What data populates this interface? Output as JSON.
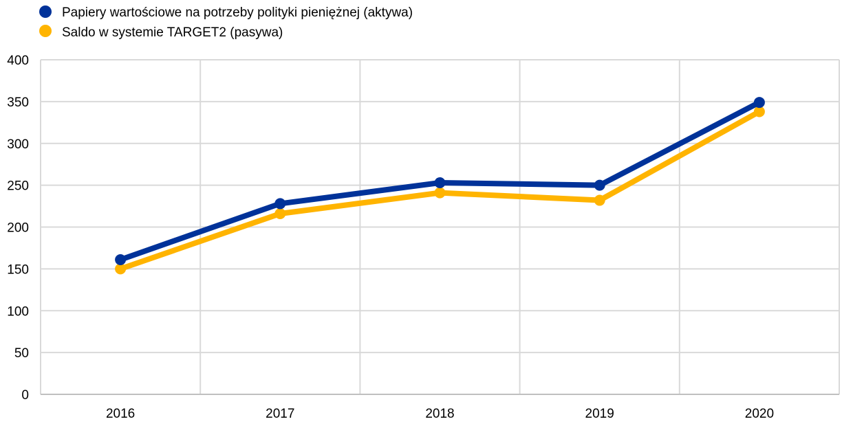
{
  "chart_data": {
    "type": "line",
    "categories": [
      "2016",
      "2017",
      "2018",
      "2019",
      "2020"
    ],
    "series": [
      {
        "name": "Papiery wartościowe na potrzeby polityki pieniężnej (aktywa)",
        "color": "#003299",
        "values": [
          161,
          228,
          253,
          250,
          349
        ]
      },
      {
        "name": "Saldo w systemie TARGET2 (pasywa)",
        "color": "#FFB400",
        "values": [
          150,
          216,
          241,
          232,
          338
        ]
      }
    ],
    "ylim": [
      0,
      400
    ],
    "yticks": [
      "0",
      "50",
      "100",
      "150",
      "200",
      "250",
      "300",
      "350",
      "400"
    ],
    "grid": true,
    "legend_position": "top-left",
    "title": "",
    "xlabel": "",
    "ylabel": ""
  }
}
